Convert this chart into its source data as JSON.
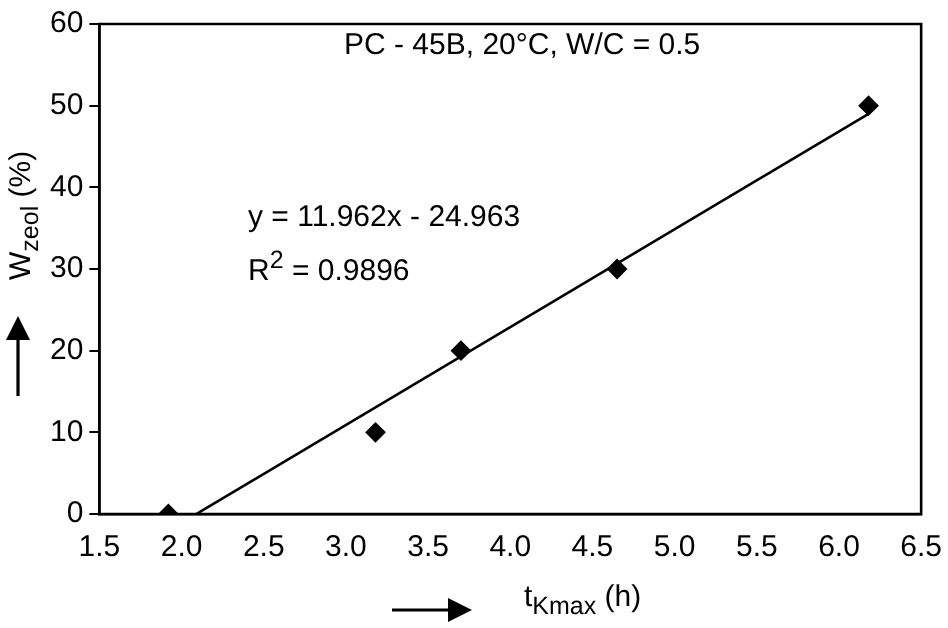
{
  "chart_data": {
    "type": "scatter",
    "xlabel": "t$_{Kmax}$ (h)",
    "ylabel": "W$_{zeol}$ (%)",
    "annotations": [
      "PC - 45B, 20°C, W/C = 0.5",
      "y = 11.962x - 24.963",
      "R$^{2}$ = 0.9896"
    ],
    "series": [
      {
        "type": "scatter",
        "color": "#000000",
        "x": [
          1.92,
          3.18,
          3.7,
          4.65,
          6.18
        ],
        "values": [
          0,
          10,
          20,
          30,
          50
        ],
        "marker": "diamond"
      },
      {
        "type": "line",
        "color": "#000000",
        "x": [
          2.09,
          6.18
        ],
        "values": [
          0,
          49
        ],
        "marker": "none",
        "line_style": "solid"
      }
    ],
    "xlim": [
      1.5,
      6.5
    ],
    "xticks": [
      {
        "value": 1.5,
        "label": "1.5"
      },
      {
        "value": 2,
        "label": "2.0"
      },
      {
        "value": 2.5,
        "label": "2.5"
      },
      {
        "value": 3,
        "label": "3.0"
      },
      {
        "value": 3.5,
        "label": "3.5"
      },
      {
        "value": 4,
        "label": "4.0"
      },
      {
        "value": 4.5,
        "label": "4.5"
      },
      {
        "value": 5,
        "label": "5.0"
      },
      {
        "value": 5.5,
        "label": "5.5"
      },
      {
        "value": 6,
        "label": "6.0"
      },
      {
        "value": 6.5,
        "label": "6.5"
      }
    ],
    "ylim": [
      0,
      60
    ],
    "yticks": [
      0,
      10,
      20,
      30,
      40,
      50,
      60
    ],
    "grid": false,
    "legend": false
  }
}
